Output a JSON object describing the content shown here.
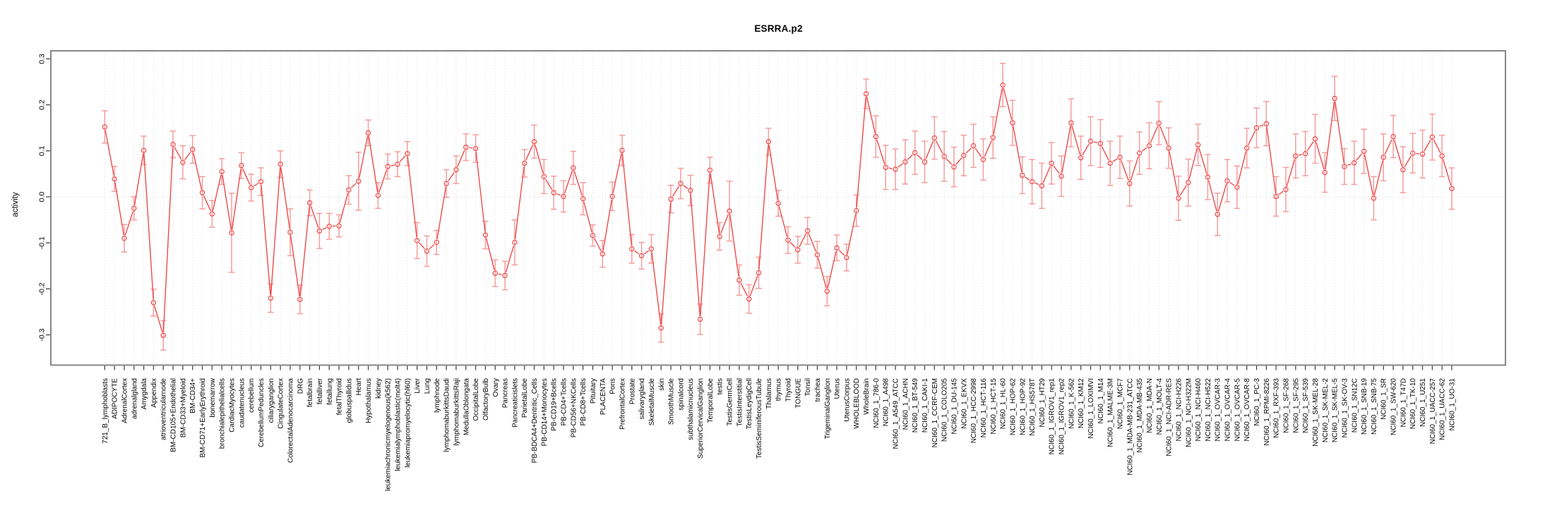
{
  "chart_data": {
    "type": "line",
    "title": "ESRRA.p2",
    "ylabel": "activity",
    "xlabel": "",
    "ylim": [
      -0.335,
      0.335
    ],
    "yticks": [
      -0.3,
      -0.2,
      -0.1,
      0.0,
      0.1,
      0.2,
      0.3
    ],
    "ytick_labels": [
      "-0.3",
      "-0.2",
      "-0.1",
      "0.0",
      "0.1",
      "0.2",
      "0.3"
    ],
    "grid": "vertical-dotted-per-category-plus-zero-line",
    "legend": "none",
    "marker": "open-circle",
    "error_bars": true,
    "categories": [
      "721_B_lymphoblasts",
      "ADIPOCYTE",
      "AdrenalCortex",
      "adrenalgland",
      "Amygdala",
      "Appendix",
      "atrioventricularnode",
      "BM-CD105+Endothelial",
      "BM-CD33+Myeloid",
      "BM-CD34+",
      "BM-CD71+EarlyErythroid",
      "bonemarrow",
      "bronchialepithelialcells",
      "CardiacMyocytes",
      "caudatenucleus",
      "cerebellum",
      "CerebellumPeduncles",
      "ciliaryganglion",
      "CingulateCortex",
      "ColorectalAdenocarcinoma",
      "DRG",
      "fetalbrain",
      "fetalliver",
      "fetallung",
      "fetalThyroid",
      "globuspallidus",
      "Heart",
      "Hypothalamus",
      "kidney",
      "leukemiachronicmyelogenous(k562)",
      "leukemialymphoblastic(molt4)",
      "leukemiapromyelocytic(hl60)",
      "Liver",
      "Lung",
      "lymphnode",
      "lymphomaburkittsDaudi",
      "lymphomaburkittsRaji",
      "MedullaOblongata",
      "OccipitalLobe",
      "OlfactoryBulb",
      "Ovary",
      "Pancreas",
      "Pancreaticislets",
      "ParietalLobe",
      "PB-BDCA4+Dentritic_Cells",
      "PB-CD14+Monocytes",
      "PB-CD19+Bcells",
      "PB-CD4+Tcells",
      "PB-CD56+NKCells",
      "PB-CD8+Tcells",
      "Pituitary",
      "PLACENTA",
      "Pons",
      "PrefrontalCortex",
      "Prostate",
      "salivarygland",
      "SkeletalMuscle",
      "skin",
      "SmoothMuscle",
      "spinalcord",
      "subthalamicnucleus",
      "SuperiorCervicalGanglion",
      "TemporalLobe",
      "testis",
      "TestisGermCell",
      "TestisInterstitial",
      "TestisLeydigCell",
      "TestisSeminiferousTubule",
      "Thalamus",
      "thymus",
      "Thyroid",
      "TONGUE",
      "Tonsil",
      "trachea",
      "TrigeminalGanglion",
      "Uterus",
      "UterusCorpus",
      "WHOLEBLOOD",
      "WholeBrain",
      "NCI60_1_786-0",
      "NCI60_1_A498",
      "NCI60_1_A549_ATCC",
      "NCI60_1_ACHN",
      "NCI60_1_BT-549",
      "NCI60_1_CAKI-1",
      "NCI60_1_CCRF-CEM",
      "NCI60_1_COLO205",
      "NCI60_1_DU-145",
      "NCI60_1_EKVX",
      "NCI60_1_HCC-2998",
      "NCI60_1_HCT-116",
      "NCI60_1_HCT-15",
      "NCI60_1_HL-60",
      "NCI60_1_HOP-62",
      "NCI60_1_HOP-92",
      "NCI60_1_HS578T",
      "NCI60_1_HT29",
      "NCI60_1_IGROV1_rep1",
      "NCI60_1_IGROV1_rep2",
      "NCI60_1_K-562",
      "NCI60_1_KM12",
      "NCI60_1_LOXIMVI",
      "NCI60_1_M14",
      "NCI60_1_MALME-3M",
      "NCI60_1_MCF7",
      "NCI60_1_MDA-MB-231_ATCC",
      "NCI60_1_MDA-MB-435",
      "NCI60_1_MDA-N",
      "NCI60_1_MOLT-4",
      "NCI60_1_NCI-ADR-RES",
      "NCI60_1_NCI-H226",
      "NCI60_1_NCI-H322M",
      "NCI60_1_NCI-H460",
      "NCI60_1_NCI-H522",
      "NCI60_1_OVCAR-3",
      "NCI60_1_OVCAR-4",
      "NCI60_1_OVCAR-5",
      "NCI60_1_OVCAR-8",
      "NCI60_1_PC-3",
      "NCI60_1_RPMI-8226",
      "NCI60_1_RXF-393",
      "NCI60_1_SF-268",
      "NCI60_1_SF-295",
      "NCI60_1_SF-539",
      "NCI60_1_SK-MEL-28",
      "NCI60_1_SK-MEL-2",
      "NCI60_1_SK-MEL-5",
      "NCI60_1_SK-OV-3",
      "NCI60_1_SN12C",
      "NCI60_1_SNB-19",
      "NCI60_1_SNB-75",
      "NCI60_1_SR",
      "NCI60_1_SW-620",
      "NCI60_1_T47D",
      "NCI60_1_TK-10",
      "NCI60_1_U251",
      "NCI60_1_UACC-257",
      "NCI60_1_UACC-62",
      "NCI60_1_UO-31"
    ],
    "values": [
      0.152,
      0.039,
      -0.09,
      -0.025,
      0.101,
      -0.23,
      -0.301,
      0.114,
      0.075,
      0.103,
      0.009,
      -0.037,
      0.055,
      -0.078,
      0.068,
      0.02,
      0.033,
      -0.22,
      0.071,
      -0.077,
      -0.223,
      -0.013,
      -0.074,
      -0.064,
      -0.063,
      0.015,
      0.034,
      0.139,
      0.003,
      0.066,
      0.071,
      0.094,
      -0.095,
      -0.118,
      -0.099,
      0.029,
      0.059,
      0.108,
      0.105,
      -0.083,
      -0.166,
      -0.171,
      -0.099,
      0.073,
      0.12,
      0.044,
      0.009,
      0.001,
      0.063,
      -0.004,
      -0.084,
      -0.124,
      0.001,
      0.101,
      -0.113,
      -0.128,
      -0.113,
      -0.285,
      -0.005,
      0.029,
      0.014,
      -0.266,
      0.058,
      -0.086,
      -0.031,
      -0.181,
      -0.222,
      -0.165,
      0.12,
      -0.014,
      -0.094,
      -0.115,
      -0.074,
      -0.126,
      -0.205,
      -0.111,
      -0.132,
      -0.03,
      0.224,
      0.131,
      0.064,
      0.06,
      0.076,
      0.096,
      0.076,
      0.128,
      0.088,
      0.065,
      0.09,
      0.111,
      0.081,
      0.129,
      0.243,
      0.161,
      0.047,
      0.033,
      0.024,
      0.073,
      0.045,
      0.161,
      0.085,
      0.121,
      0.116,
      0.073,
      0.086,
      0.029,
      0.095,
      0.111,
      0.16,
      0.106,
      -0.003,
      0.031,
      0.113,
      0.043,
      -0.038,
      0.035,
      0.021,
      0.106,
      0.15,
      0.159,
      0.001,
      0.016,
      0.089,
      0.094,
      0.126,
      0.053,
      0.214,
      0.066,
      0.074,
      0.099,
      -0.003,
      0.086,
      0.131,
      0.059,
      0.095,
      0.093,
      0.13,
      0.089,
      0.018
    ],
    "errors": [
      0.035,
      0.027,
      0.03,
      0.025,
      0.031,
      0.029,
      0.032,
      0.029,
      0.036,
      0.03,
      0.035,
      0.029,
      0.028,
      0.086,
      0.028,
      0.029,
      0.03,
      0.031,
      0.029,
      0.051,
      0.031,
      0.028,
      0.038,
      0.028,
      0.024,
      0.031,
      0.063,
      0.028,
      0.028,
      0.027,
      0.027,
      0.026,
      0.039,
      0.033,
      0.026,
      0.03,
      0.03,
      0.029,
      0.03,
      0.03,
      0.029,
      0.031,
      0.049,
      0.03,
      0.036,
      0.037,
      0.036,
      0.034,
      0.036,
      0.035,
      0.023,
      0.029,
      0.031,
      0.033,
      0.031,
      0.029,
      0.031,
      0.031,
      0.03,
      0.033,
      0.033,
      0.033,
      0.028,
      0.03,
      0.065,
      0.033,
      0.031,
      0.034,
      0.029,
      0.028,
      0.029,
      0.029,
      0.029,
      0.029,
      0.032,
      0.028,
      0.029,
      0.034,
      0.032,
      0.045,
      0.048,
      0.044,
      0.048,
      0.047,
      0.045,
      0.046,
      0.054,
      0.043,
      0.044,
      0.047,
      0.045,
      0.045,
      0.047,
      0.049,
      0.04,
      0.048,
      0.049,
      0.045,
      0.044,
      0.052,
      0.047,
      0.053,
      0.052,
      0.048,
      0.046,
      0.049,
      0.046,
      0.05,
      0.047,
      0.044,
      0.048,
      0.051,
      0.045,
      0.049,
      0.046,
      0.046,
      0.046,
      0.043,
      0.043,
      0.048,
      0.043,
      0.048,
      0.048,
      0.048,
      0.053,
      0.043,
      0.048,
      0.039,
      0.047,
      0.048,
      0.047,
      0.051,
      0.046,
      0.05,
      0.043,
      0.052,
      0.05,
      0.045,
      0.045
    ],
    "colors": {
      "series": "#ee4b4b",
      "error_bar": "#f59d9d",
      "marker_fill": "#ffffff",
      "grid": "#dedede",
      "zero_line": "#d4d4d4",
      "box_border": "#878787",
      "tick": "#3a3a3a",
      "text": "#000000",
      "background": "#ffffff"
    }
  }
}
